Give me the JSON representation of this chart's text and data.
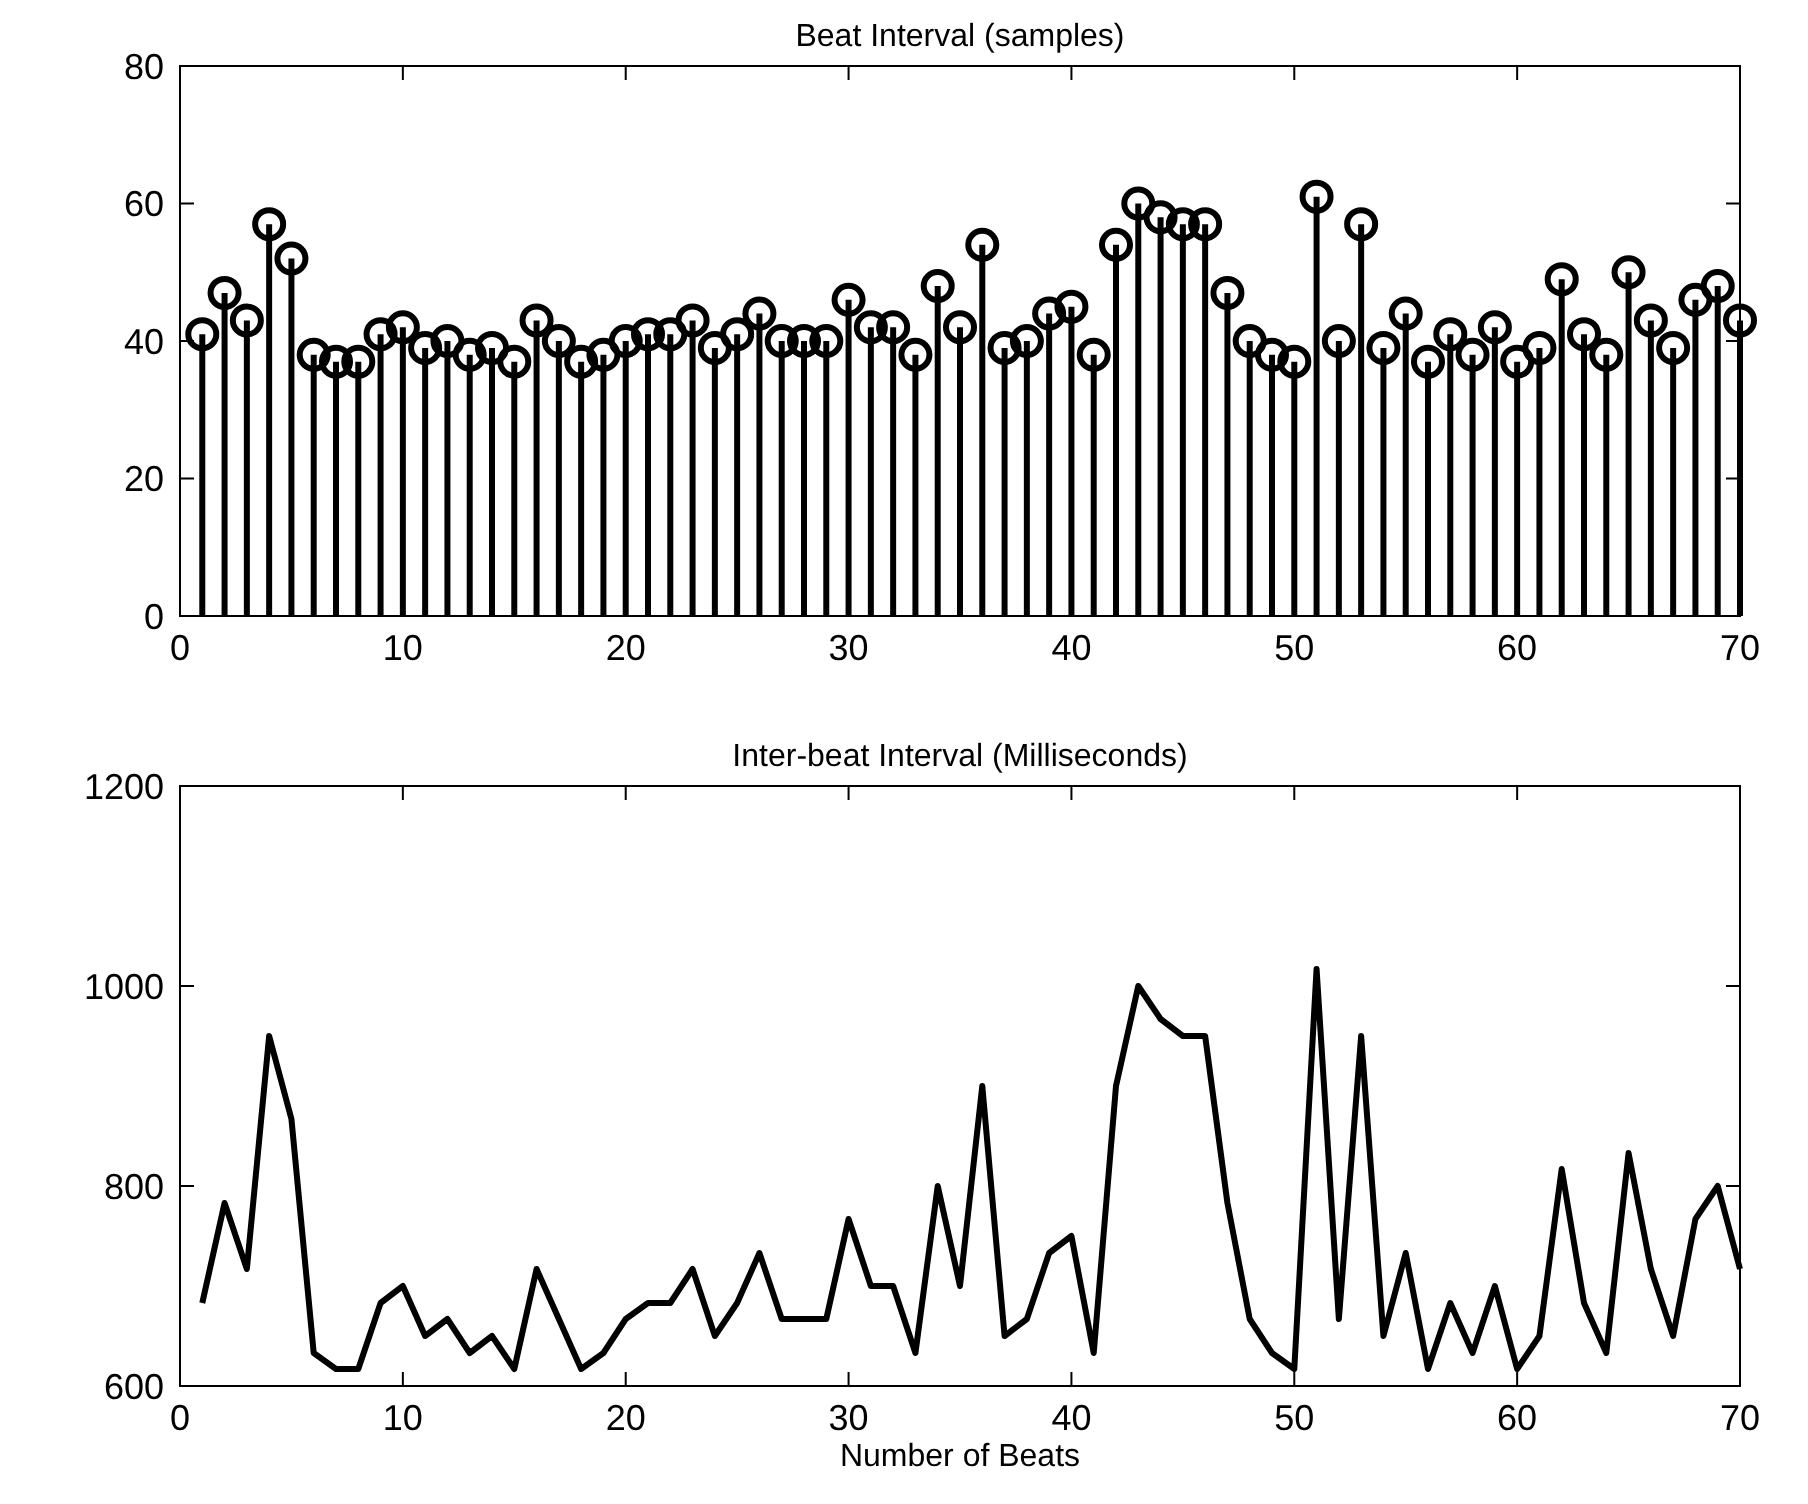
{
  "chart_data": [
    {
      "type": "lollipop",
      "title": "Beat Interval (samples)",
      "x": [
        1,
        2,
        3,
        4,
        5,
        6,
        7,
        8,
        9,
        10,
        11,
        12,
        13,
        14,
        15,
        16,
        17,
        18,
        19,
        20,
        21,
        22,
        23,
        24,
        25,
        26,
        27,
        28,
        29,
        30,
        31,
        32,
        33,
        34,
        35,
        36,
        37,
        38,
        39,
        40,
        41,
        42,
        43,
        44,
        45,
        46,
        47,
        48,
        49,
        50,
        51,
        52,
        53,
        54,
        55,
        56,
        57,
        58,
        59,
        60,
        61,
        62,
        63,
        64,
        65,
        66,
        67,
        68,
        69,
        70
      ],
      "series": [
        {
          "color": "#000000",
          "values": [
            41,
            47,
            43,
            57,
            52,
            38,
            37,
            37,
            41,
            42,
            39,
            40,
            38,
            39,
            37,
            43,
            40,
            37,
            38,
            40,
            41,
            41,
            43,
            39,
            41,
            44,
            40,
            40,
            40,
            46,
            42,
            42,
            38,
            48,
            42,
            54,
            39,
            40,
            44,
            45,
            38,
            54,
            60,
            58,
            57,
            57,
            47,
            40,
            38,
            37,
            61,
            40,
            57,
            39,
            44,
            37,
            41,
            38,
            42,
            37,
            39,
            49,
            41,
            38,
            50,
            43,
            39,
            46,
            48,
            43
          ]
        }
      ],
      "marker": "circle",
      "xlim": [
        0,
        70
      ],
      "xticks": [
        0,
        10,
        20,
        30,
        40,
        50,
        60,
        70
      ],
      "ylim": [
        0,
        80
      ],
      "yticks": [
        0,
        20,
        40,
        60,
        80
      ],
      "grid": false
    },
    {
      "type": "line",
      "title": "Inter-beat Interval (Milliseconds)",
      "xlabel": "Number of Beats",
      "x": [
        1,
        2,
        3,
        4,
        5,
        6,
        7,
        8,
        9,
        10,
        11,
        12,
        13,
        14,
        15,
        16,
        17,
        18,
        19,
        20,
        21,
        22,
        23,
        24,
        25,
        26,
        27,
        28,
        29,
        30,
        31,
        32,
        33,
        34,
        35,
        36,
        37,
        38,
        39,
        40,
        41,
        42,
        43,
        44,
        45,
        46,
        47,
        48,
        49,
        50,
        51,
        52,
        53,
        54,
        55,
        56,
        57,
        58,
        59,
        60,
        61,
        62,
        63,
        64,
        65,
        66,
        67,
        68,
        69,
        70
      ],
      "series": [
        {
          "color": "#000000",
          "values": [
            683,
            783,
            717,
            950,
            867,
            633,
            617,
            617,
            683,
            700,
            650,
            667,
            633,
            650,
            617,
            717,
            667,
            617,
            633,
            667,
            683,
            683,
            717,
            650,
            683,
            733,
            667,
            667,
            667,
            767,
            700,
            700,
            633,
            800,
            700,
            900,
            650,
            667,
            733,
            750,
            633,
            900,
            1000,
            967,
            950,
            950,
            783,
            667,
            633,
            617,
            1017,
            667,
            950,
            650,
            733,
            617,
            683,
            633,
            700,
            617,
            650,
            817,
            683,
            633,
            833,
            717,
            650,
            767,
            800,
            717
          ]
        }
      ],
      "marker": "none",
      "line_style": "solid",
      "xlim": [
        0,
        70
      ],
      "xticks": [
        0,
        10,
        20,
        30,
        40,
        50,
        60,
        70
      ],
      "ylim": [
        600,
        1200
      ],
      "yticks": [
        600,
        800,
        1000,
        1200
      ],
      "grid": false
    }
  ]
}
